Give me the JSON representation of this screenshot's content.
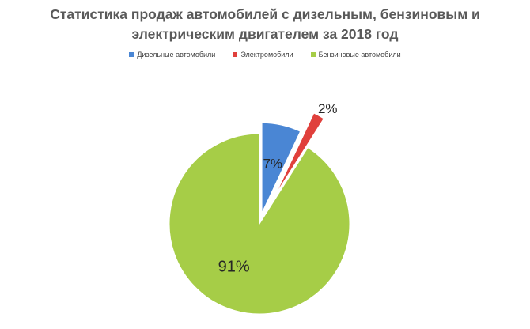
{
  "chart_data": {
    "type": "pie",
    "title_lines": [
      "Статистика продаж автомобилей с дизельным, бензиновым и",
      "электрическим двигателем за 2018 год"
    ],
    "legend_position": "top",
    "categories": [
      "Дизельные автомобили",
      "Электромобили",
      "Бензиновые автомобили"
    ],
    "values": [
      7,
      2,
      91
    ],
    "labels": [
      "7%",
      "2%",
      "91%"
    ],
    "colors": [
      "#4a86d4",
      "#e0403c",
      "#a6cd47"
    ],
    "exploded": true
  }
}
